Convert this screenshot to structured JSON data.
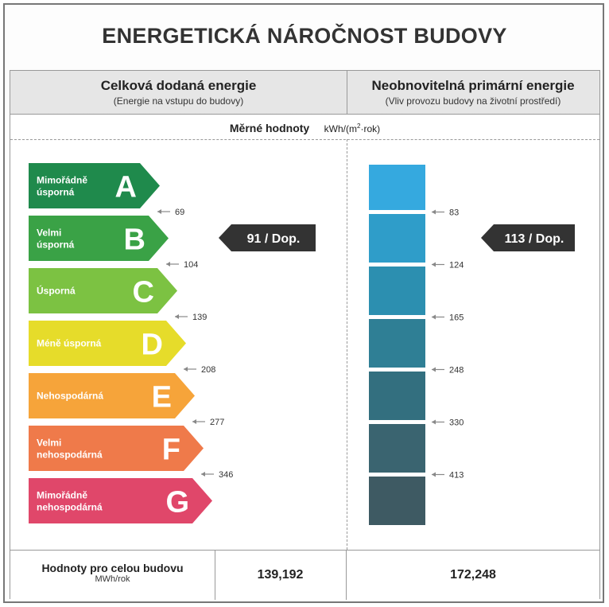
{
  "title": "ENERGETICKÁ NÁROČNOST BUDOVY",
  "left_header": {
    "title": "Celková dodaná energie",
    "subtitle": "(Energie na vstupu do budovy)"
  },
  "right_header": {
    "title": "Neobnovitelná primární energie",
    "subtitle": "(Vliv provozu budovy na životní prostředí)"
  },
  "specific": {
    "label": "Měrné hodnoty",
    "unit_prefix": "kWh/(m",
    "unit_sup": "2",
    "unit_suffix": "·rok)"
  },
  "classes": [
    {
      "letter": "A",
      "label": [
        "Mimořádně",
        "úsporná"
      ],
      "color": "#1f8a4c"
    },
    {
      "letter": "B",
      "label": [
        "Velmi",
        "úsporná"
      ],
      "color": "#3aa246"
    },
    {
      "letter": "C",
      "label": [
        "Úsporná"
      ],
      "color": "#7cc242"
    },
    {
      "letter": "D",
      "label": [
        "Méně úsporná"
      ],
      "color": "#e6dc2a"
    },
    {
      "letter": "E",
      "label": [
        "Nehospodárná"
      ],
      "color": "#f6a43a"
    },
    {
      "letter": "F",
      "label": [
        "Velmi",
        "nehospodárná"
      ],
      "color": "#ef7a4a"
    },
    {
      "letter": "G",
      "label": [
        "Mimořádně",
        "nehospodárná"
      ],
      "color": "#e0476a"
    }
  ],
  "left_thresholds": [
    "69",
    "104",
    "139",
    "208",
    "277",
    "346"
  ],
  "right_thresholds": [
    "83",
    "124",
    "165",
    "248",
    "330",
    "413"
  ],
  "right_bar_colors": [
    "#35a9df",
    "#2f9dc9",
    "#2c8fb0",
    "#2f7f95",
    "#336f7f",
    "#3a6470",
    "#3e5a63"
  ],
  "left_indicator": {
    "text": "91 / Dop.",
    "value": 91,
    "class": "B"
  },
  "right_indicator": {
    "text": "113 / Dop.",
    "value": 113
  },
  "footer": {
    "label": "Hodnoty pro celou budovu",
    "unit": "MWh/rok",
    "left_value": "139,192",
    "right_value": "172,248"
  }
}
